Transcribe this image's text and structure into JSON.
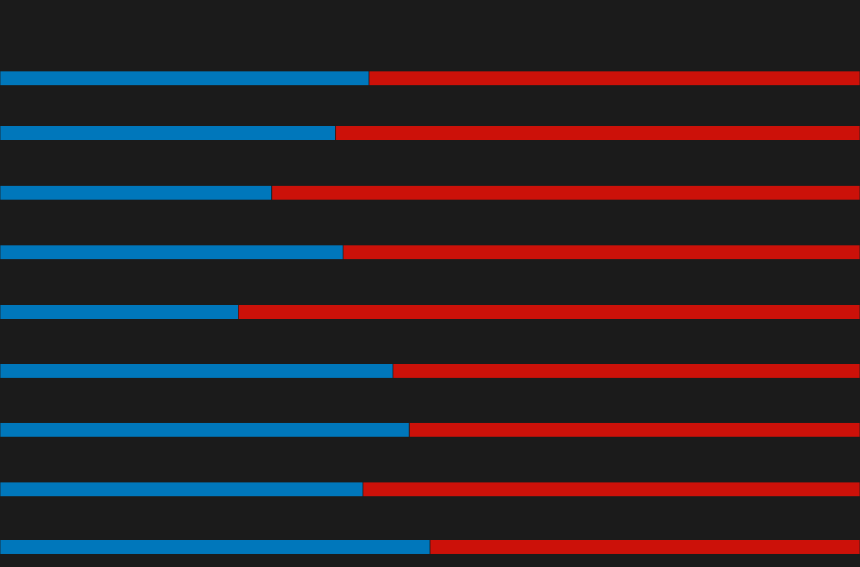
{
  "chart_data": {
    "type": "bar",
    "orientation": "horizontal",
    "stacked": true,
    "normalized": true,
    "title": "",
    "xlabel": "",
    "ylabel": "",
    "xlim": [
      0,
      100
    ],
    "grid": false,
    "legend": "none",
    "categories": [
      "",
      "",
      "",
      "",
      "",
      "",
      "",
      "",
      ""
    ],
    "series": [
      {
        "color": "#0077bb",
        "values": [
          42.9,
          39.0,
          31.6,
          39.9,
          27.7,
          45.7,
          47.6,
          42.2,
          50.0
        ]
      },
      {
        "color": "#cc1109",
        "values": [
          57.1,
          61.0,
          68.4,
          60.1,
          72.3,
          54.3,
          52.4,
          57.8,
          50.0
        ]
      }
    ]
  },
  "colors": {
    "background": "#1b1b1b",
    "bar_stroke": "#1b1b1b"
  }
}
